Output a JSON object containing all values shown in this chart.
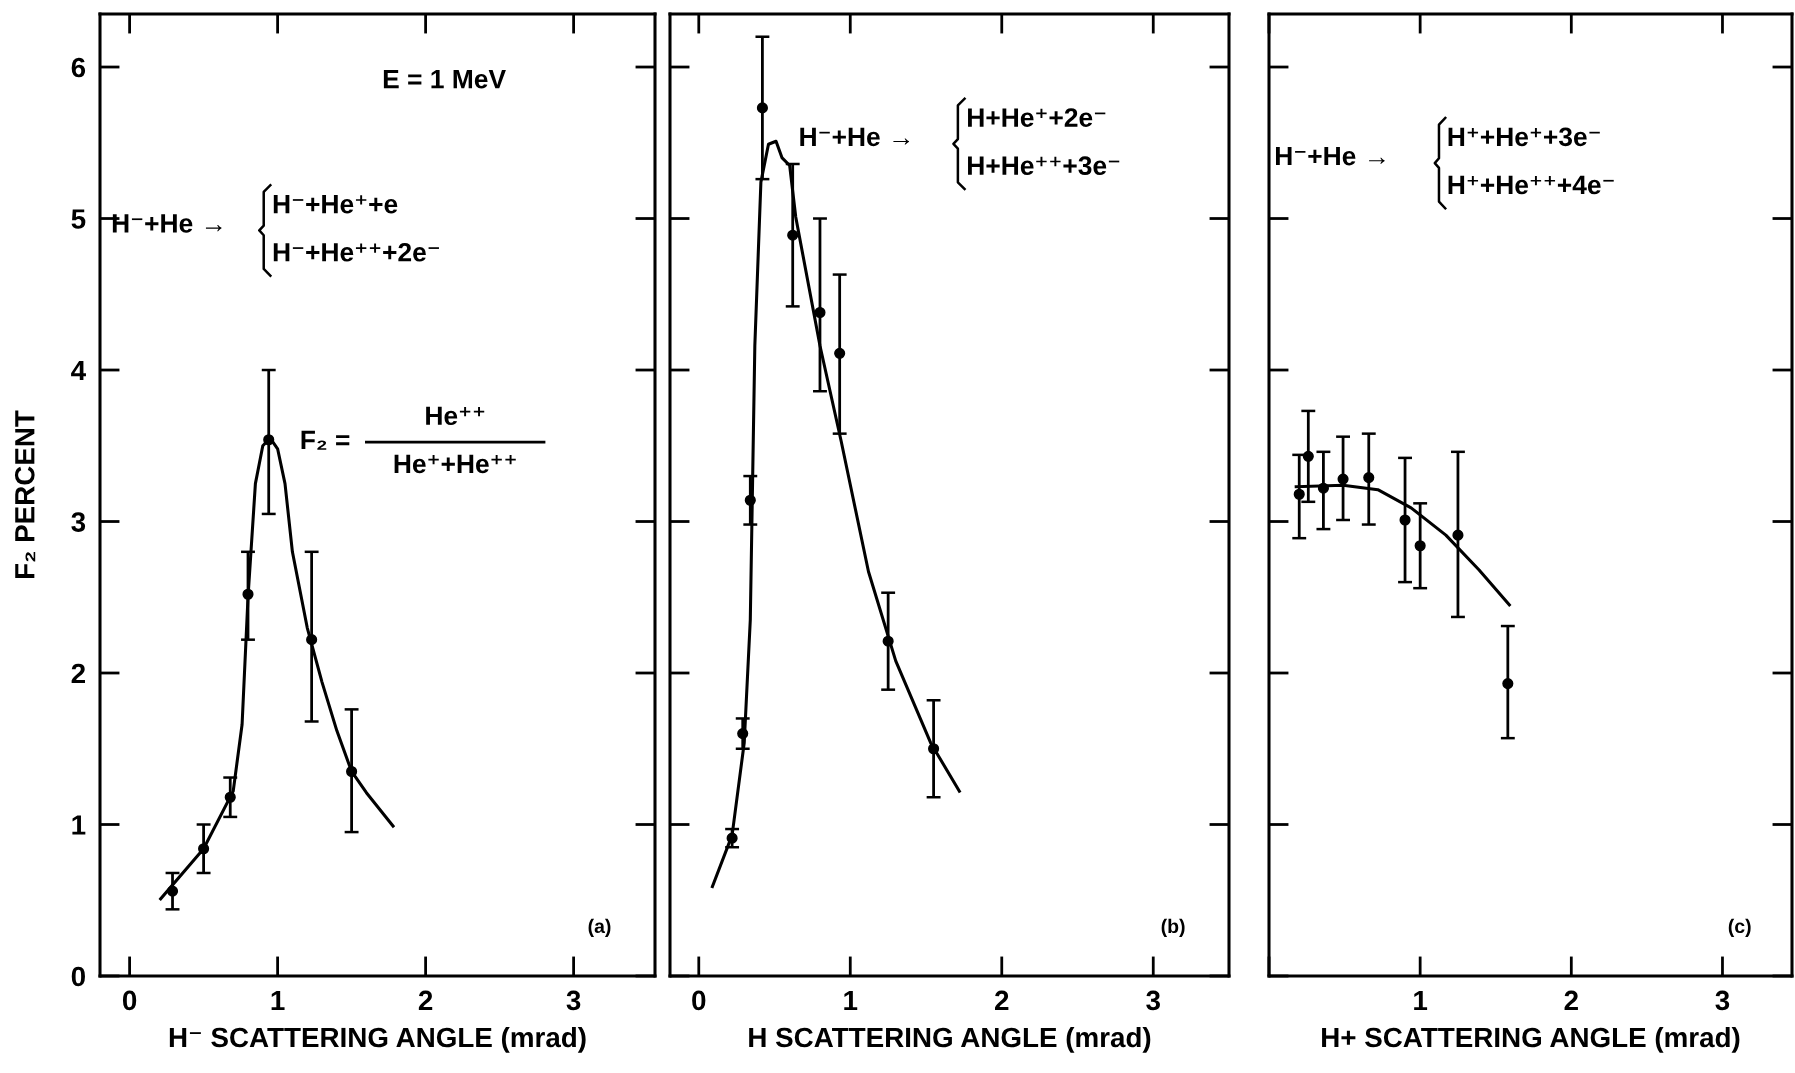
{
  "chart_data": [
    {
      "type": "scatter",
      "xlabel": "H⁻ SCATTERING ANGLE (mrad)",
      "ylabel": "F₂ PERCENT",
      "xlim": [
        -0.2,
        3.55
      ],
      "ylim": [
        0,
        6.35
      ],
      "xticks": [
        0,
        1,
        2,
        3
      ],
      "yticks": [
        0,
        1,
        2,
        3,
        4,
        5,
        6
      ],
      "marker": "circle",
      "grid": false,
      "legend": false,
      "annotations": [
        "E = 1 MeV",
        "H⁻+He →",
        "H⁻+He⁺+e",
        "H⁻+He⁺⁺+2e⁻",
        "F₂ =",
        "He⁺⁺",
        "He⁺+He⁺⁺",
        "(a)"
      ],
      "series": [
        {
          "color": "#000000",
          "x": [
            0.29,
            0.5,
            0.68,
            0.8,
            0.94,
            1.23,
            1.5
          ],
          "values": [
            0.56,
            0.84,
            1.18,
            2.52,
            3.54,
            2.22,
            1.35
          ],
          "errors": [
            0.12,
            0.16,
            0.13,
            [
              2.22,
              2.8
            ],
            [
              3.05,
              4.0
            ],
            [
              1.68,
              2.8
            ],
            [
              0.95,
              1.76
            ]
          ]
        },
        {
          "type": "line",
          "color": "#000000",
          "marker": "none",
          "x": [
            0.21,
            0.5,
            0.7,
            0.76,
            0.8,
            0.85,
            0.9,
            0.95,
            1.0,
            1.05,
            1.1,
            1.2,
            1.3,
            1.4,
            1.5,
            1.6,
            1.78
          ],
          "values": [
            0.51,
            0.84,
            1.22,
            1.66,
            2.5,
            3.25,
            3.5,
            3.55,
            3.48,
            3.25,
            2.8,
            2.3,
            1.94,
            1.62,
            1.35,
            1.21,
            0.99
          ]
        }
      ]
    },
    {
      "type": "scatter",
      "xlabel": "H SCATTERING ANGLE (mrad)",
      "xlim": [
        -0.19,
        3.5
      ],
      "ylim": [
        0,
        6.35
      ],
      "xticks": [
        0,
        1,
        2,
        3
      ],
      "yticks": [
        0,
        1,
        2,
        3,
        4,
        5,
        6
      ],
      "tick_labels": "x",
      "marker": "circle",
      "grid": false,
      "legend": false,
      "annotations": [
        "H⁻+He →",
        "H+He⁺+2e⁻",
        "H+He⁺⁺+3e⁻",
        "(b)"
      ],
      "series": [
        {
          "color": "#000000",
          "x": [
            0.22,
            0.29,
            0.34,
            0.42,
            0.62,
            0.8,
            0.93,
            1.25,
            1.55
          ],
          "values": [
            0.91,
            1.6,
            3.14,
            5.73,
            4.89,
            4.38,
            4.11,
            2.21,
            1.5
          ],
          "errors": [
            0.06,
            0.1,
            0.16,
            [
              5.26,
              6.2
            ],
            [
              4.42,
              5.36
            ],
            [
              3.86,
              5.0
            ],
            [
              3.58,
              4.63
            ],
            [
              1.89,
              2.53
            ],
            [
              1.18,
              1.82
            ]
          ]
        },
        {
          "type": "line",
          "color": "#000000",
          "marker": "none",
          "x": [
            0.09,
            0.22,
            0.3,
            0.34,
            0.37,
            0.41,
            0.46,
            0.51,
            0.55,
            0.6,
            0.64,
            0.8,
            0.94,
            1.12,
            1.3,
            1.53,
            1.72
          ],
          "values": [
            0.59,
            0.93,
            1.54,
            2.35,
            4.16,
            5.24,
            5.49,
            5.51,
            5.4,
            5.35,
            5.01,
            4.16,
            3.53,
            2.67,
            2.08,
            1.54,
            1.22
          ]
        }
      ]
    },
    {
      "type": "scatter",
      "xlabel": "H+ SCATTERING ANGLE (mrad)",
      "xlim": [
        0,
        3.46
      ],
      "ylim": [
        0,
        6.35
      ],
      "xticks": [
        {
          "value": 0,
          "label": null
        },
        1,
        2,
        3
      ],
      "yticks": [
        0,
        1,
        2,
        3,
        4,
        5,
        6
      ],
      "tick_labels": "x",
      "marker": "circle",
      "grid": false,
      "legend": false,
      "annotations": [
        "H⁻+He →",
        "H⁺+He⁺+3e⁻",
        "H⁺+He⁺⁺+4e⁻",
        "(c)"
      ],
      "series": [
        {
          "color": "#000000",
          "x": [
            0.2,
            0.26,
            0.36,
            0.49,
            0.66,
            0.9,
            1.0,
            1.25,
            1.58
          ],
          "values": [
            3.18,
            3.43,
            3.22,
            3.28,
            3.29,
            3.01,
            2.84,
            2.91,
            1.93
          ],
          "errors": [
            [
              2.89,
              3.44
            ],
            [
              3.13,
              3.73
            ],
            [
              2.95,
              3.46
            ],
            [
              3.01,
              3.56
            ],
            [
              2.98,
              3.58
            ],
            [
              2.6,
              3.42
            ],
            [
              2.56,
              3.12
            ],
            [
              2.37,
              3.46
            ],
            [
              1.57,
              2.31
            ]
          ]
        },
        {
          "type": "line",
          "color": "#000000",
          "marker": "none",
          "x": [
            0.18,
            0.49,
            0.72,
            0.94,
            1.17,
            1.39,
            1.59
          ],
          "values": [
            3.23,
            3.24,
            3.21,
            3.09,
            2.91,
            2.68,
            2.45
          ]
        }
      ]
    }
  ]
}
